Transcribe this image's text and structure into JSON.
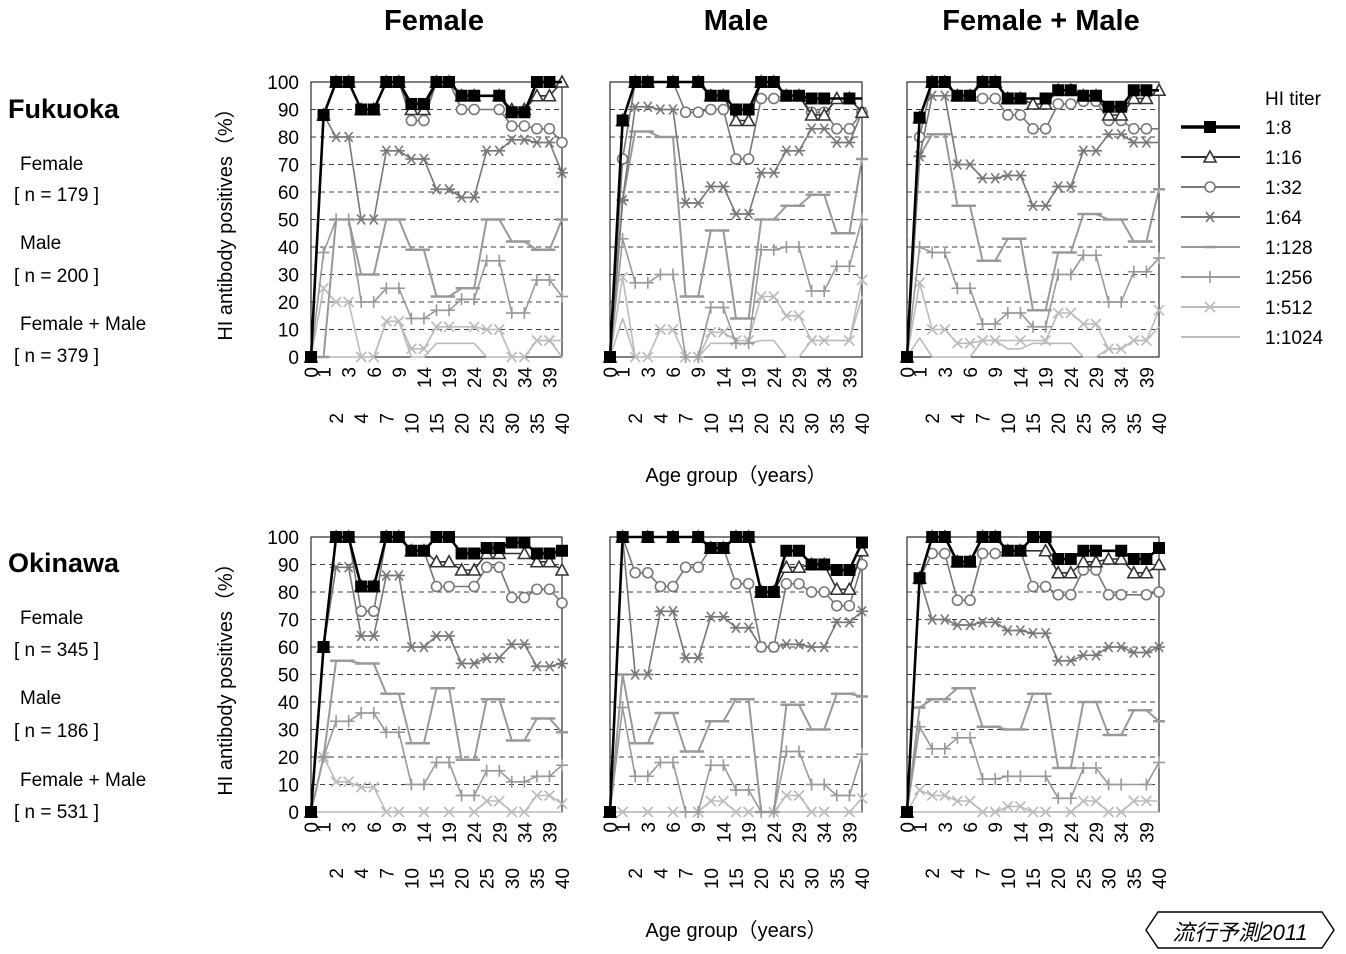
{
  "column_titles": [
    "Female",
    "Male",
    "Female + Male"
  ],
  "regions": [
    {
      "name": "Fukuoka",
      "groups": [
        {
          "label": "Female",
          "n": "[ n = 179 ]"
        },
        {
          "label": "Male",
          "n": "[ n = 200 ]"
        },
        {
          "label": "Female + Male",
          "n": "[ n = 379 ]"
        }
      ]
    },
    {
      "name": "Okinawa",
      "groups": [
        {
          "label": "Female",
          "n": "[ n = 345 ]"
        },
        {
          "label": "Male",
          "n": "[ n = 186 ]"
        },
        {
          "label": "Female + Male",
          "n": "[ n = 531 ]"
        }
      ]
    }
  ],
  "ylabel": "HI antibody positives（%）",
  "xlabel": "Age group（years）",
  "legend_title": "HI titer",
  "badge": "流行予測2011",
  "chart_data": {
    "type": "line",
    "x": [
      "0",
      "1",
      "2",
      "3",
      "4",
      "6",
      "7",
      "9",
      "10",
      "14",
      "15",
      "19",
      "20",
      "24",
      "25",
      "29",
      "30",
      "34",
      "35",
      "39",
      "40"
    ],
    "ylim": [
      0,
      100
    ],
    "yticks": [
      0,
      10,
      20,
      30,
      40,
      50,
      60,
      70,
      80,
      90,
      100
    ],
    "grid": true,
    "legend_position": "right",
    "series_meta": [
      {
        "name": "1:8",
        "color": "#000000",
        "marker": "square"
      },
      {
        "name": "1:16",
        "color": "#333333",
        "marker": "triangle"
      },
      {
        "name": "1:32",
        "color": "#777777",
        "marker": "circle"
      },
      {
        "name": "1:64",
        "color": "#777777",
        "marker": "star"
      },
      {
        "name": "1:128",
        "color": "#999999",
        "marker": "dash"
      },
      {
        "name": "1:256",
        "color": "#999999",
        "marker": "plus"
      },
      {
        "name": "1:512",
        "color": "#bbbbbb",
        "marker": "x"
      },
      {
        "name": "1:1024",
        "color": "#bbbbbb",
        "marker": "none"
      }
    ],
    "panels": [
      {
        "region": "Fukuoka",
        "group": "Female",
        "series": [
          [
            0,
            88,
            100,
            100,
            90,
            90,
            100,
            100,
            92,
            92,
            100,
            100,
            95,
            95,
            95,
            95,
            89,
            89,
            100,
            100,
            100
          ],
          [
            0,
            88,
            100,
            100,
            90,
            90,
            100,
            100,
            90,
            90,
            100,
            100,
            95,
            95,
            95,
            95,
            90,
            90,
            95,
            95,
            100
          ],
          [
            0,
            88,
            100,
            100,
            90,
            90,
            100,
            100,
            86,
            86,
            100,
            100,
            90,
            90,
            90,
            90,
            84,
            84,
            83,
            83,
            78
          ],
          [
            0,
            88,
            80,
            80,
            50,
            50,
            75,
            75,
            72,
            72,
            61,
            61,
            58,
            58,
            75,
            75,
            79,
            79,
            78,
            78,
            67
          ],
          [
            0,
            0,
            50,
            50,
            30,
            30,
            50,
            50,
            39,
            39,
            22,
            22,
            25,
            25,
            50,
            50,
            42,
            42,
            39,
            39,
            50
          ],
          [
            0,
            38,
            50,
            50,
            20,
            20,
            25,
            25,
            14,
            14,
            17,
            17,
            21,
            21,
            35,
            35,
            16,
            16,
            28,
            28,
            22
          ],
          [
            0,
            25,
            20,
            20,
            0,
            0,
            13,
            13,
            3,
            3,
            11,
            11,
            11,
            11,
            10,
            10,
            0,
            0,
            6,
            6,
            6
          ],
          [
            0,
            0,
            0,
            0,
            0,
            0,
            13,
            13,
            0,
            0,
            5,
            5,
            5,
            5,
            0,
            0,
            0,
            0,
            6,
            6,
            0
          ]
        ]
      },
      {
        "region": "Fukuoka",
        "group": "Male",
        "series": [
          [
            0,
            86,
            100,
            100,
            100,
            100,
            100,
            100,
            95,
            95,
            90,
            90,
            100,
            100,
            95,
            95,
            94,
            94,
            94,
            94,
            94
          ],
          [
            0,
            86,
            100,
            100,
            100,
            100,
            100,
            100,
            95,
            95,
            86,
            86,
            100,
            100,
            95,
            95,
            88,
            88,
            94,
            94,
            89
          ],
          [
            0,
            72,
            100,
            100,
            100,
            100,
            89,
            89,
            90,
            90,
            72,
            72,
            94,
            94,
            95,
            95,
            89,
            89,
            83,
            83,
            89
          ],
          [
            0,
            57,
            91,
            91,
            90,
            90,
            56,
            56,
            62,
            62,
            52,
            52,
            67,
            67,
            75,
            75,
            83,
            83,
            78,
            78,
            89
          ],
          [
            0,
            57,
            82,
            82,
            80,
            80,
            22,
            22,
            46,
            46,
            14,
            14,
            50,
            50,
            55,
            55,
            59,
            59,
            45,
            45,
            72
          ],
          [
            0,
            43,
            27,
            27,
            30,
            30,
            0,
            0,
            18,
            18,
            5,
            5,
            39,
            39,
            40,
            40,
            24,
            24,
            33,
            33,
            50
          ],
          [
            0,
            29,
            0,
            0,
            10,
            10,
            0,
            0,
            9,
            9,
            6,
            6,
            22,
            22,
            15,
            15,
            6,
            6,
            6,
            6,
            28
          ],
          [
            0,
            14,
            0,
            0,
            0,
            0,
            0,
            0,
            5,
            5,
            5,
            5,
            6,
            6,
            0,
            0,
            6,
            6,
            6,
            6,
            22
          ]
        ]
      },
      {
        "region": "Fukuoka",
        "group": "Female + Male",
        "series": [
          [
            0,
            87,
            100,
            100,
            95,
            95,
            100,
            100,
            94,
            94,
            94,
            94,
            97,
            97,
            95,
            95,
            91,
            91,
            97,
            97,
            97
          ],
          [
            0,
            87,
            100,
            100,
            95,
            95,
            100,
            100,
            94,
            94,
            92,
            92,
            97,
            97,
            95,
            95,
            88,
            88,
            94,
            94,
            97
          ],
          [
            0,
            80,
            100,
            100,
            95,
            95,
            94,
            94,
            88,
            88,
            83,
            83,
            92,
            92,
            93,
            93,
            86,
            86,
            83,
            83,
            83
          ],
          [
            0,
            73,
            95,
            95,
            70,
            70,
            65,
            65,
            66,
            66,
            55,
            55,
            62,
            62,
            75,
            75,
            81,
            81,
            78,
            78,
            78
          ],
          [
            0,
            73,
            81,
            81,
            55,
            55,
            35,
            35,
            43,
            43,
            17,
            17,
            38,
            38,
            52,
            52,
            50,
            50,
            42,
            42,
            61
          ],
          [
            0,
            40,
            38,
            38,
            25,
            25,
            12,
            12,
            16,
            16,
            11,
            11,
            30,
            30,
            37,
            37,
            20,
            20,
            31,
            31,
            36
          ],
          [
            0,
            27,
            10,
            10,
            5,
            5,
            6,
            6,
            6,
            6,
            6,
            6,
            16,
            16,
            12,
            12,
            3,
            3,
            6,
            6,
            17
          ],
          [
            0,
            7,
            0,
            0,
            0,
            0,
            6,
            6,
            3,
            3,
            5,
            5,
            5,
            5,
            0,
            0,
            3,
            3,
            6,
            6,
            11
          ]
        ]
      },
      {
        "region": "Okinawa",
        "group": "Female",
        "series": [
          [
            0,
            60,
            100,
            100,
            82,
            82,
            100,
            100,
            95,
            95,
            100,
            100,
            94,
            94,
            96,
            96,
            98,
            98,
            94,
            94,
            95
          ],
          [
            0,
            60,
            100,
            100,
            82,
            82,
            100,
            100,
            95,
            95,
            91,
            91,
            88,
            88,
            94,
            94,
            94,
            94,
            91,
            91,
            88
          ],
          [
            0,
            60,
            100,
            100,
            73,
            73,
            100,
            100,
            95,
            95,
            82,
            82,
            82,
            82,
            89,
            89,
            78,
            78,
            81,
            81,
            76
          ],
          [
            0,
            60,
            89,
            89,
            64,
            64,
            86,
            86,
            60,
            60,
            64,
            64,
            54,
            54,
            56,
            56,
            61,
            61,
            53,
            53,
            54
          ],
          [
            0,
            20,
            55,
            55,
            54,
            54,
            43,
            43,
            25,
            25,
            45,
            45,
            19,
            19,
            41,
            41,
            26,
            26,
            34,
            34,
            29
          ],
          [
            0,
            20,
            33,
            33,
            36,
            36,
            29,
            29,
            10,
            10,
            18,
            18,
            6,
            6,
            15,
            15,
            11,
            11,
            13,
            13,
            17
          ],
          [
            0,
            20,
            11,
            11,
            9,
            9,
            0,
            0,
            0,
            0,
            0,
            0,
            0,
            0,
            4,
            4,
            0,
            0,
            6,
            6,
            3
          ],
          [
            0,
            0,
            0,
            0,
            0,
            0,
            0,
            0,
            0,
            0,
            0,
            0,
            0,
            0,
            0,
            0,
            0,
            0,
            0,
            0,
            0
          ]
        ]
      },
      {
        "region": "Okinawa",
        "group": "Male",
        "series": [
          [
            0,
            100,
            100,
            100,
            100,
            100,
            100,
            100,
            96,
            96,
            100,
            100,
            80,
            80,
            95,
            95,
            90,
            90,
            88,
            88,
            98
          ],
          [
            0,
            100,
            100,
            100,
            100,
            100,
            100,
            100,
            96,
            96,
            100,
            100,
            80,
            80,
            89,
            89,
            90,
            90,
            81,
            81,
            95
          ],
          [
            0,
            100,
            87,
            87,
            82,
            82,
            89,
            89,
            96,
            96,
            83,
            83,
            60,
            60,
            83,
            83,
            80,
            80,
            75,
            75,
            90
          ],
          [
            0,
            100,
            50,
            50,
            73,
            73,
            56,
            56,
            71,
            71,
            67,
            67,
            60,
            60,
            61,
            61,
            60,
            60,
            69,
            69,
            73
          ],
          [
            0,
            50,
            25,
            25,
            36,
            36,
            22,
            22,
            33,
            33,
            41,
            41,
            0,
            0,
            39,
            39,
            30,
            30,
            43,
            43,
            42
          ],
          [
            0,
            38,
            13,
            13,
            18,
            18,
            0,
            0,
            17,
            17,
            8,
            8,
            0,
            0,
            22,
            22,
            10,
            10,
            6,
            6,
            21
          ],
          [
            0,
            0,
            0,
            0,
            0,
            0,
            0,
            0,
            4,
            4,
            0,
            0,
            0,
            0,
            6,
            6,
            0,
            0,
            0,
            0,
            5
          ],
          [
            0,
            0,
            0,
            0,
            0,
            0,
            0,
            0,
            0,
            0,
            0,
            0,
            0,
            0,
            0,
            0,
            0,
            0,
            0,
            0,
            0
          ]
        ]
      },
      {
        "region": "Okinawa",
        "group": "Female + Male",
        "series": [
          [
            0,
            85,
            100,
            100,
            91,
            91,
            100,
            100,
            95,
            95,
            100,
            100,
            92,
            92,
            95,
            95,
            95,
            95,
            92,
            92,
            96
          ],
          [
            0,
            85,
            100,
            100,
            91,
            91,
            100,
            100,
            95,
            95,
            95,
            95,
            87,
            87,
            91,
            91,
            92,
            92,
            87,
            87,
            90
          ],
          [
            0,
            85,
            94,
            94,
            77,
            77,
            94,
            94,
            95,
            95,
            82,
            82,
            79,
            79,
            88,
            88,
            79,
            79,
            79,
            79,
            80
          ],
          [
            0,
            85,
            70,
            70,
            68,
            68,
            69,
            69,
            66,
            66,
            65,
            65,
            55,
            55,
            57,
            57,
            60,
            60,
            58,
            58,
            60
          ],
          [
            0,
            38,
            41,
            41,
            45,
            45,
            31,
            31,
            30,
            30,
            43,
            43,
            16,
            16,
            40,
            40,
            28,
            28,
            37,
            37,
            33
          ],
          [
            0,
            31,
            23,
            23,
            27,
            27,
            12,
            12,
            13,
            13,
            13,
            13,
            5,
            5,
            16,
            16,
            10,
            10,
            10,
            10,
            18
          ],
          [
            0,
            8,
            6,
            6,
            4,
            4,
            0,
            0,
            2,
            2,
            0,
            0,
            0,
            0,
            4,
            4,
            0,
            0,
            4,
            4,
            4
          ],
          [
            0,
            0,
            0,
            0,
            0,
            0,
            0,
            0,
            0,
            0,
            0,
            0,
            0,
            0,
            0,
            0,
            0,
            0,
            0,
            0,
            0
          ]
        ]
      }
    ]
  }
}
